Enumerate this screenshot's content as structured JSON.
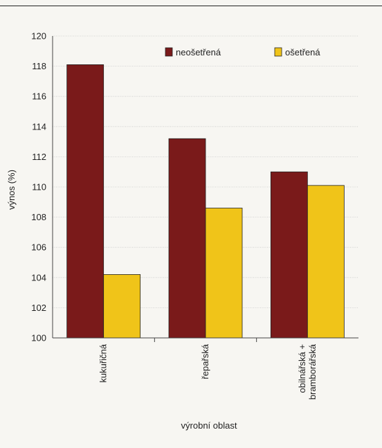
{
  "chart_data": {
    "type": "bar",
    "categories": [
      [
        "kukuřičná"
      ],
      [
        "řepařská"
      ],
      [
        "obilnářská +",
        "bramborářská"
      ]
    ],
    "series": [
      {
        "name": "neošetřená",
        "color": "#7a1a1a",
        "values": [
          118.1,
          113.2,
          111.0
        ]
      },
      {
        "name": "ošetřená",
        "color": "#f0c419",
        "values": [
          104.2,
          108.6,
          110.1
        ]
      }
    ],
    "xlabel": "výrobní oblast",
    "ylabel": "výnos (%)",
    "ylim": [
      100,
      120
    ],
    "yticks": [
      "100",
      "102",
      "104",
      "106",
      "108",
      "110",
      "112",
      "114",
      "116",
      "118",
      "120"
    ],
    "grid": true,
    "legend": "top-right"
  }
}
